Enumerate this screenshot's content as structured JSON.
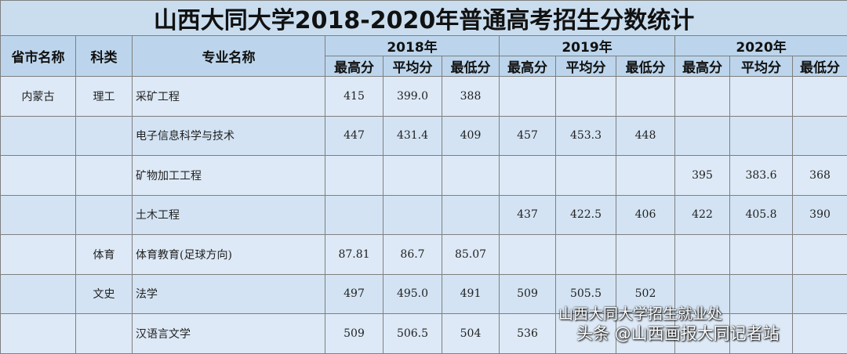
{
  "header": {
    "title": "山西大同大学2018-2020年普通高考招生分数统计"
  },
  "table": {
    "columns": [
      "省市名称",
      "科类",
      "专业名称"
    ],
    "years": [
      "2018年",
      "2019年",
      "2020年"
    ],
    "sub_columns": [
      "最高分",
      "平均分",
      "最低分"
    ],
    "rows": [
      [
        "内蒙古",
        "理工",
        "采矿工程",
        "415",
        "399.0",
        "388",
        null,
        null,
        null,
        null,
        null,
        null
      ],
      [
        null,
        null,
        "电子信息科学与技术",
        "447",
        "431.4",
        "409",
        "457",
        "453.3",
        "448",
        null,
        null,
        null
      ],
      [
        null,
        null,
        "矿物加工工程",
        null,
        null,
        null,
        null,
        null,
        null,
        "395",
        "383.6",
        "368"
      ],
      [
        null,
        null,
        "土木工程",
        null,
        null,
        null,
        "437",
        "422.5",
        "406",
        "422",
        "405.8",
        "390"
      ],
      [
        null,
        "体育",
        "体育教育(足球方向)",
        "87.81",
        "86.7",
        "85.07",
        null,
        null,
        null,
        null,
        null,
        null
      ],
      [
        null,
        "文史",
        "法学",
        "497",
        "495.0",
        "491",
        "509",
        "505.5",
        "502",
        null,
        null,
        null
      ],
      [
        null,
        null,
        "汉语言文学",
        "509",
        "506.5",
        "504",
        "536",
        null,
        null,
        null,
        null,
        null
      ]
    ]
  },
  "watermarks": [
    "山西大同大学招生就业处",
    "头条 @山西画报大同记者站"
  ]
}
